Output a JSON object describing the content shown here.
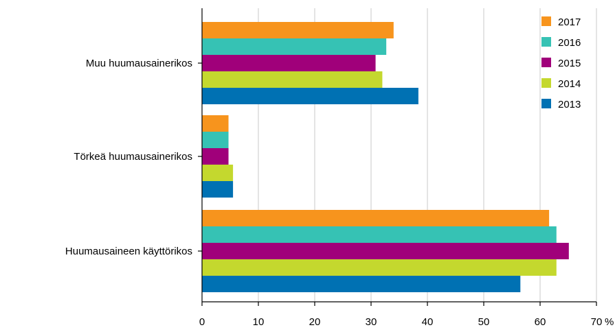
{
  "chart_data": {
    "type": "bar",
    "orientation": "horizontal",
    "categories": [
      "Muu huumausainerikos",
      "Törkeä huumausainerikos",
      "Huumausaineen käyttörikos"
    ],
    "series": [
      {
        "name": "2017",
        "color": "#f7941d",
        "values": [
          34.0,
          4.7,
          61.6
        ]
      },
      {
        "name": "2016",
        "color": "#36c2b4",
        "values": [
          32.7,
          4.7,
          62.9
        ]
      },
      {
        "name": "2015",
        "color": "#a0007a",
        "values": [
          30.8,
          4.7,
          65.1
        ]
      },
      {
        "name": "2014",
        "color": "#c4d82e",
        "values": [
          32.0,
          5.5,
          62.9
        ]
      },
      {
        "name": "2013",
        "color": "#0071b3",
        "values": [
          38.4,
          5.5,
          56.5
        ]
      }
    ],
    "xlim": [
      0,
      70
    ],
    "xticks": [
      "0",
      "10",
      "20",
      "30",
      "40",
      "50",
      "60",
      "70"
    ],
    "xunit": "%",
    "grid": true,
    "legend": "top-right"
  }
}
